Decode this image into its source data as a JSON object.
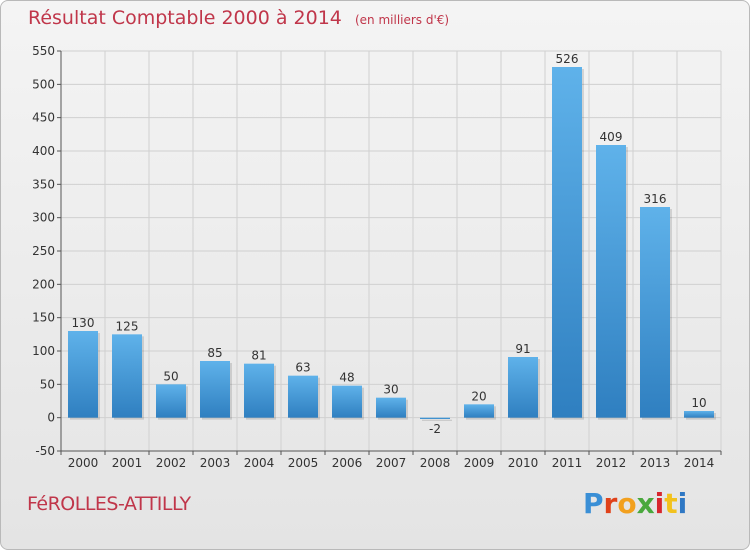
{
  "header": {
    "title": "Résultat Comptable 2000 à 2014",
    "unit": "(en milliers d'€)"
  },
  "footer": {
    "town": "FéROLLES-ATTILLY",
    "logo": "Proxiti",
    "logo_colors": [
      "#3a8fd6",
      "#e0421a",
      "#f2a01e",
      "#49a83d",
      "#d7262e",
      "#f2c21e",
      "#2f78c4"
    ]
  },
  "colors": {
    "bar": "#3d96d6",
    "bar_light": "#5fb2ea",
    "bar_dark": "#2f7fc0",
    "grid": "#d0d0d0",
    "accent": "#c0364a"
  },
  "chart_data": {
    "type": "bar",
    "title": "Résultat Comptable 2000 à 2014",
    "subtitle": "(en milliers d'€)",
    "categories": [
      "2000",
      "2001",
      "2002",
      "2003",
      "2004",
      "2005",
      "2006",
      "2007",
      "2008",
      "2009",
      "2010",
      "2011",
      "2012",
      "2013",
      "2014"
    ],
    "values": [
      130,
      125,
      50,
      85,
      81,
      63,
      48,
      30,
      -2,
      20,
      91,
      526,
      409,
      316,
      10
    ],
    "ylim": [
      -50,
      550
    ],
    "yticks": [
      -50,
      0,
      50,
      100,
      150,
      200,
      250,
      300,
      350,
      400,
      450,
      500,
      550
    ],
    "grid": true
  }
}
